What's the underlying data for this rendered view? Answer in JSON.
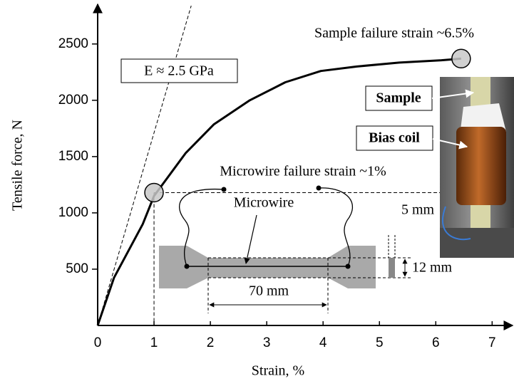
{
  "chart_data": {
    "type": "line",
    "x_label": "Strain, %",
    "y_label": "Tensile force, N",
    "series": [
      {
        "color": "#000000",
        "x": [
          0,
          0.29,
          0.8,
          1.0,
          1.56,
          2.06,
          2.7,
          3.33,
          3.96,
          4.6,
          5.35,
          6.1,
          6.45
        ],
        "values": [
          0,
          424,
          900,
          1150,
          1530,
          1785,
          2000,
          2160,
          2260,
          2300,
          2335,
          2355,
          2370
        ]
      }
    ],
    "modulus_line": {
      "x": [
        0,
        1.66
      ],
      "values": [
        0,
        2840
      ]
    },
    "markers": {
      "x": [
        1,
        6.45
      ],
      "values": [
        1180,
        2370
      ]
    },
    "annotations": [
      "E ≈ 2.5 GPa",
      "Sample failure strain ~6.5%",
      "Microwire failure strain ~1%"
    ],
    "inset_labels": [
      "Microwire",
      "70 mm",
      "5 mm",
      "12 mm"
    ],
    "photo_labels": [
      "Sample",
      "Bias coil"
    ],
    "xlim": [
      0,
      7.35
    ],
    "ylim": [
      0,
      2840
    ],
    "xticks": [
      0,
      1,
      2,
      3,
      4,
      5,
      6,
      7
    ],
    "yticks": [
      500,
      1000,
      1500,
      2000,
      2500
    ]
  }
}
